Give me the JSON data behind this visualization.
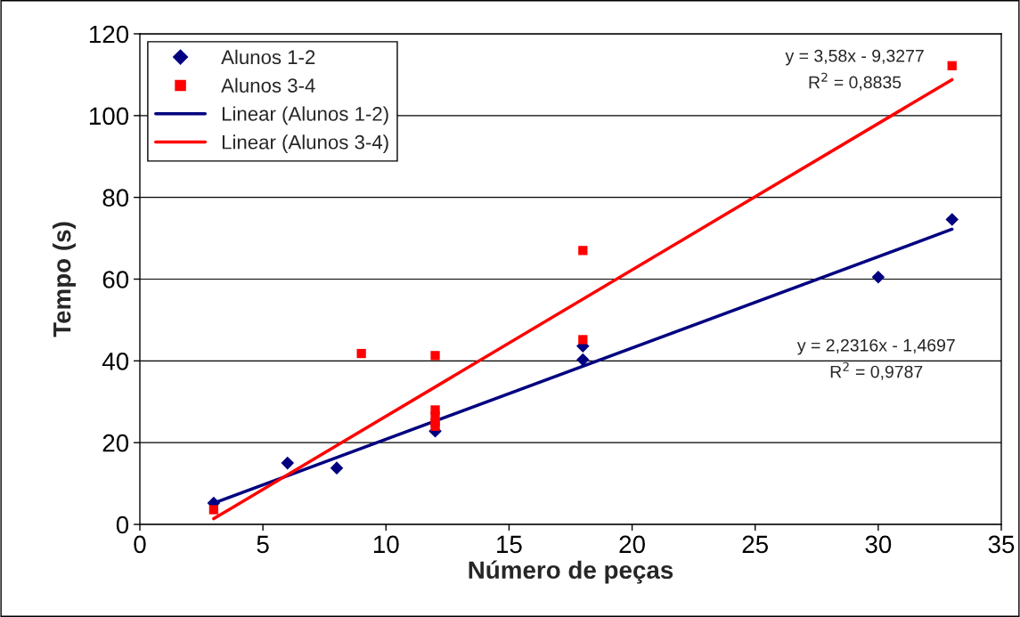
{
  "chart_data": {
    "type": "scatter",
    "xlabel": "Número de peças",
    "ylabel": "Tempo (s)",
    "xlim": [
      0,
      35
    ],
    "xticks": [
      0,
      5,
      10,
      15,
      20,
      25,
      30,
      35
    ],
    "ylim": [
      0,
      120
    ],
    "yticks": [
      0,
      20,
      40,
      60,
      80,
      100,
      120
    ],
    "grid": "y",
    "legend": "top left",
    "series": [
      {
        "name": "Alunos 1-2",
        "marker": "diamond",
        "color": "#000080",
        "x": [
          3,
          6,
          8,
          12,
          18,
          18,
          30,
          33
        ],
        "values": [
          5.2,
          15,
          13.8,
          22.8,
          40.3,
          43.6,
          60.5,
          74.6
        ]
      },
      {
        "name": "Alunos 3-4",
        "marker": "square",
        "color": "#ff0000",
        "x": [
          3,
          9,
          12,
          12,
          12,
          12,
          12,
          18,
          18,
          33
        ],
        "values": [
          3.6,
          41.8,
          41.3,
          28,
          26.5,
          25,
          24,
          67,
          45.2,
          112.2
        ]
      },
      {
        "name": "Linear (Alunos 1-2)",
        "type": "line",
        "marker": "none",
        "line_style": "solid",
        "color": "#000080",
        "x": [
          3,
          33
        ],
        "values": [
          5.2,
          72.2
        ]
      },
      {
        "name": "Linear (Alunos 3-4)",
        "type": "line",
        "marker": "none",
        "line_style": "solid",
        "color": "#ff0000",
        "x": [
          3,
          33
        ],
        "values": [
          1.4,
          108.8
        ]
      }
    ],
    "annotations": [
      "y = 3,58x - 9,3277\nR$^{2}$ = 0,8835",
      "y = 2,2316x - 1,4697\nR$^{2}$ = 0,9787"
    ]
  }
}
